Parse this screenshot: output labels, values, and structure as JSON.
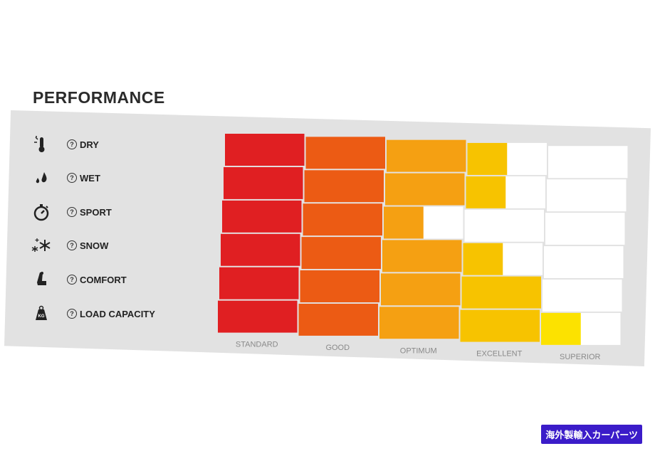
{
  "chart_data": {
    "type": "bar",
    "orientation": "horizontal",
    "title": "PERFORMANCE",
    "categories": [
      "DRY",
      "WET",
      "SPORT",
      "SNOW",
      "COMFORT",
      "LOAD CAPACITY"
    ],
    "scale_labels": [
      "STANDARD",
      "GOOD",
      "OPTIMUM",
      "EXCELLENT",
      "SUPERIOR"
    ],
    "values": [
      3.5,
      3.5,
      2.5,
      3.5,
      4.0,
      4.5
    ],
    "xlim": [
      0,
      5
    ],
    "grid": true,
    "level_colors": [
      "#e01f22",
      "#ec5b14",
      "#f5a012",
      "#f7c300",
      "#fce200"
    ]
  },
  "icons": [
    "thermometer-sun-icon",
    "rain-drops-icon",
    "stopwatch-icon",
    "snowflakes-icon",
    "car-seat-icon",
    "weight-kg-icon"
  ],
  "watermark": "海外製輸入カーパーツ"
}
